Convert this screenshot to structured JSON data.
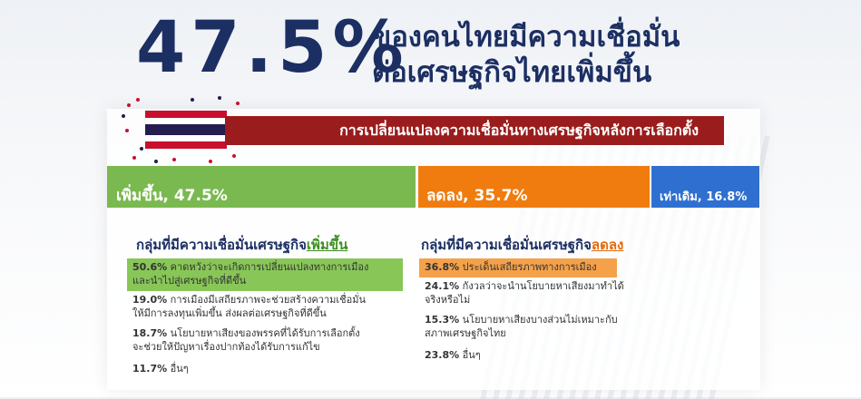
{
  "headline": {
    "percent": "47.5%",
    "line1": "ของคนไทยมีความเชื่อมั่น",
    "line2": "ต่อเศรษฐกิจไทยเพิ่มขึ้น"
  },
  "banner_title": "การเปลี่ยนแปลงความเชื่อมั่นทางเศรษฐกิจหลังการเลือกตั้ง",
  "colors": {
    "increase": "#7ab950",
    "decrease": "#f07c0f",
    "same": "#2f6fd0",
    "banner": "#9b1c1c",
    "navy": "#1c2f63"
  },
  "chart_data": {
    "type": "bar",
    "orientation": "horizontal-stacked-100",
    "categories": [
      "เพิ่มขึ้น",
      "ลดลง",
      "เท่าเดิม"
    ],
    "values": [
      47.5,
      35.7,
      16.8
    ],
    "labels": [
      "เพิ่มขึ้น, 47.5%",
      "ลดลง, 35.7%",
      "เท่าเดิม, 16.8%"
    ],
    "colors": [
      "#7ab950",
      "#f07c0f",
      "#2f6fd0"
    ]
  },
  "groups": {
    "increase": {
      "heading_prefix": "กลุ่มที่มีความเชื่อมั่นเศรษฐกิจ",
      "heading_emphasis": "เพิ่มขึ้น",
      "reasons": [
        {
          "pct": "50.6%",
          "text": "คาดหวังว่าจะเกิดการเปลี่ยนแปลงทางการเมือง",
          "text2": "และนำไปสู่เศรษฐกิจที่ดีขึ้น"
        },
        {
          "pct": "19.0%",
          "text": "การเมืองมีเสถียรภาพจะช่วยสร้างความเชื่อมั่น",
          "text2": "ให้มีการลงทุนเพิ่มขึ้น ส่งผลต่อเศรษฐกิจที่ดีขึ้น"
        },
        {
          "pct": "18.7%",
          "text": "นโยบายหาเสียงของพรรคที่ได้รับการเลือกตั้ง",
          "text2": "จะช่วยให้ปัญหาเรื่องปากท้องได้รับการแก้ไข"
        },
        {
          "pct": "11.7%",
          "text": "อื่นๆ",
          "text2": ""
        }
      ]
    },
    "decrease": {
      "heading_prefix": "กลุ่มที่มีความเชื่อมั่นเศรษฐกิจ",
      "heading_emphasis": "ลดลง",
      "reasons": [
        {
          "pct": "36.8%",
          "text": "ประเด็นเสถียรภาพทางการเมือง",
          "text2": ""
        },
        {
          "pct": "24.1%",
          "text": "กังวลว่าจะนำนโยบายหาเสียงมาทำได้",
          "text2": "จริงหรือไม่"
        },
        {
          "pct": "15.3%",
          "text": "นโยบายหาเสียงบางส่วนไม่เหมาะกับ",
          "text2": "สภาพเศรษฐกิจไทย"
        },
        {
          "pct": "23.8%",
          "text": "อื่นๆ",
          "text2": ""
        }
      ]
    }
  }
}
